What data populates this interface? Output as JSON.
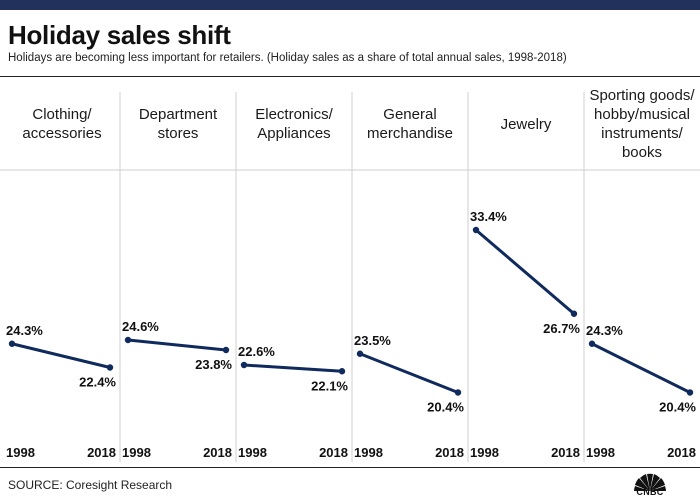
{
  "header": {
    "title": "Holiday sales shift",
    "subtitle": "Holidays are becoming less important for retailers. (Holiday sales as a share of total annual sales, 1998-2018)"
  },
  "footer": {
    "source": "SOURCE: Coresight Research",
    "logo_text": "CNBC",
    "logo_icon": "peacock-icon"
  },
  "colors": {
    "line": "#0f2a5c",
    "top_bar": "#22315a",
    "divider": "#cfcfcf"
  },
  "chart_data": {
    "type": "line",
    "title": "Holiday sales shift",
    "subtitle": "Holidays are becoming less important for retailers. (Holiday sales as a share of total annual sales, 1998-2018)",
    "x": [
      "1998",
      "2018"
    ],
    "ylim": [
      15,
      37
    ],
    "unit": "%",
    "grid": false,
    "legend": "none",
    "series": [
      {
        "name": "Clothing/ accessories",
        "lines": [
          "Clothing/",
          "accessories"
        ],
        "values": [
          24.3,
          22.4
        ],
        "labels": [
          "24.3%",
          "22.4%"
        ]
      },
      {
        "name": "Department stores",
        "lines": [
          "Department",
          "stores"
        ],
        "values": [
          24.6,
          23.8
        ],
        "labels": [
          "24.6%",
          "23.8%"
        ]
      },
      {
        "name": "Electronics/ Appliances",
        "lines": [
          "Electronics/",
          "Appliances"
        ],
        "values": [
          22.6,
          22.1
        ],
        "labels": [
          "22.6%",
          "22.1%"
        ]
      },
      {
        "name": "General merchandise",
        "lines": [
          "General",
          "merchandise"
        ],
        "values": [
          23.5,
          20.4
        ],
        "labels": [
          "23.5%",
          "20.4%"
        ]
      },
      {
        "name": "Jewelry",
        "lines": [
          "Jewelry"
        ],
        "values": [
          33.4,
          26.7
        ],
        "labels": [
          "33.4%",
          "26.7%"
        ]
      },
      {
        "name": "Sporting goods/ hobby/musical instruments/ books",
        "lines": [
          "Sporting goods/",
          "hobby/musical",
          "instruments/",
          "books"
        ],
        "values": [
          24.3,
          20.4
        ],
        "labels": [
          "24.3%",
          "20.4%"
        ]
      }
    ]
  }
}
